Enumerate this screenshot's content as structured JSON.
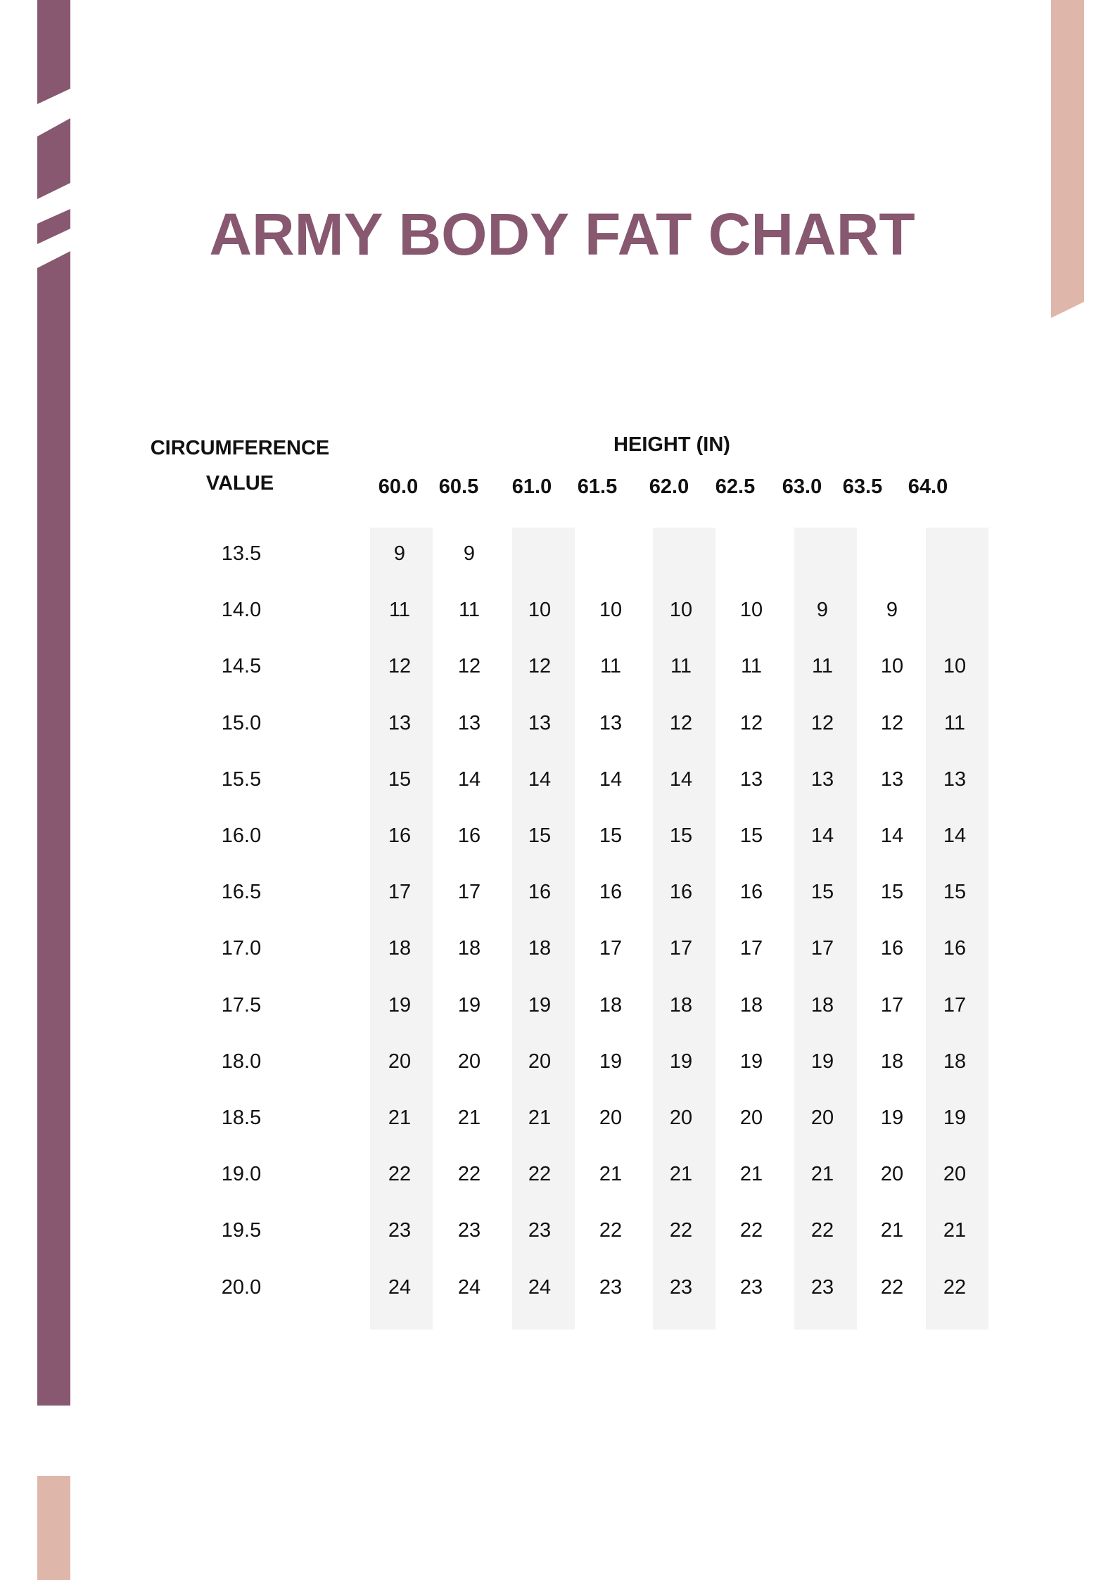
{
  "title": "ARMY BODY FAT CHART",
  "colors": {
    "accent_purple": "#87586F",
    "accent_pink": "#DFB6AA",
    "column_shade": "#F3F3F3"
  },
  "table": {
    "row_header_line1": "CIRCUMFERENCE",
    "row_header_line2": "VALUE",
    "column_group_header": "HEIGHT (IN)",
    "heights": [
      "60.0",
      "60.5",
      "61.0",
      "61.5",
      "62.0",
      "62.5",
      "63.0",
      "63.5",
      "64.0"
    ],
    "rows": [
      {
        "circumference": "13.5",
        "values": [
          "9",
          "9",
          "",
          "",
          "",
          "",
          "",
          "",
          ""
        ]
      },
      {
        "circumference": "14.0",
        "values": [
          "11",
          "11",
          "10",
          "10",
          "10",
          "10",
          "9",
          "9",
          ""
        ]
      },
      {
        "circumference": "14.5",
        "values": [
          "12",
          "12",
          "12",
          "11",
          "11",
          "11",
          "11",
          "10",
          "10"
        ]
      },
      {
        "circumference": "15.0",
        "values": [
          "13",
          "13",
          "13",
          "13",
          "12",
          "12",
          "12",
          "12",
          "11"
        ]
      },
      {
        "circumference": "15.5",
        "values": [
          "15",
          "14",
          "14",
          "14",
          "14",
          "13",
          "13",
          "13",
          "13"
        ]
      },
      {
        "circumference": "16.0",
        "values": [
          "16",
          "16",
          "15",
          "15",
          "15",
          "15",
          "14",
          "14",
          "14"
        ]
      },
      {
        "circumference": "16.5",
        "values": [
          "17",
          "17",
          "16",
          "16",
          "16",
          "16",
          "15",
          "15",
          "15"
        ]
      },
      {
        "circumference": "17.0",
        "values": [
          "18",
          "18",
          "18",
          "17",
          "17",
          "17",
          "17",
          "16",
          "16"
        ]
      },
      {
        "circumference": "17.5",
        "values": [
          "19",
          "19",
          "19",
          "18",
          "18",
          "18",
          "18",
          "17",
          "17"
        ]
      },
      {
        "circumference": "18.0",
        "values": [
          "20",
          "20",
          "20",
          "19",
          "19",
          "19",
          "19",
          "18",
          "18"
        ]
      },
      {
        "circumference": "18.5",
        "values": [
          "21",
          "21",
          "21",
          "20",
          "20",
          "20",
          "20",
          "19",
          "19"
        ]
      },
      {
        "circumference": "19.0",
        "values": [
          "22",
          "22",
          "22",
          "21",
          "21",
          "21",
          "21",
          "20",
          "20"
        ]
      },
      {
        "circumference": "19.5",
        "values": [
          "23",
          "23",
          "23",
          "22",
          "22",
          "22",
          "22",
          "21",
          "21"
        ]
      },
      {
        "circumference": "20.0",
        "values": [
          "24",
          "24",
          "24",
          "23",
          "23",
          "23",
          "23",
          "22",
          "22"
        ]
      }
    ]
  }
}
